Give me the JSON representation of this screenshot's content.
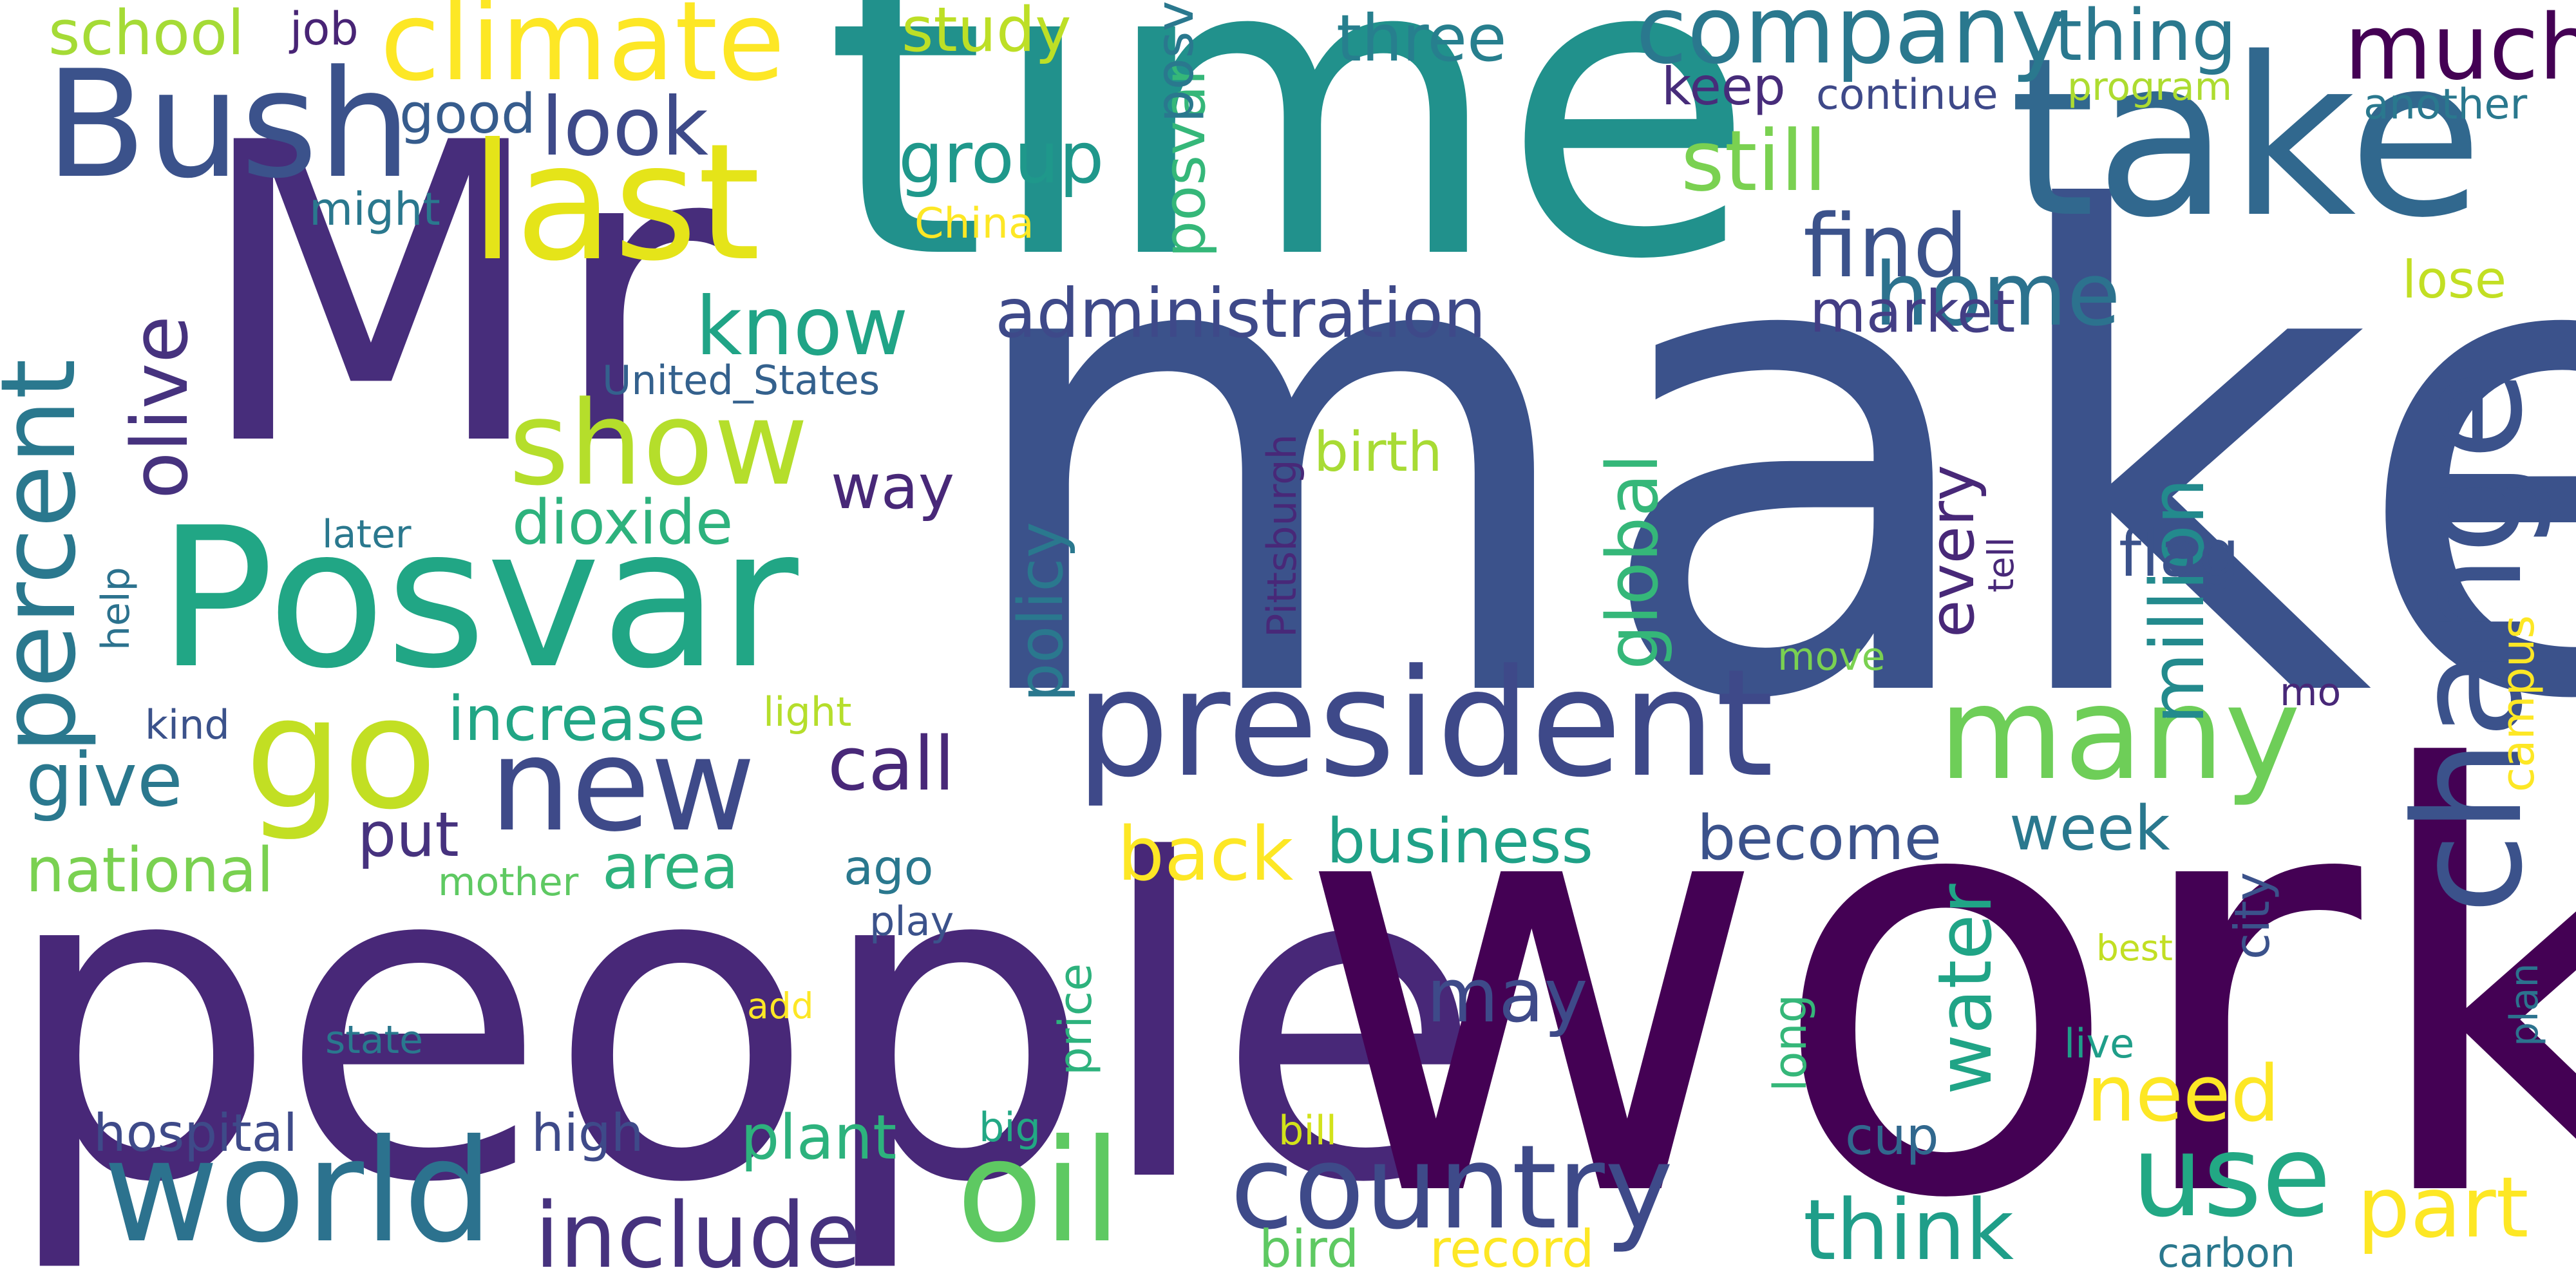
{
  "words": [
    {
      "text": "make",
      "color": "#3b528b"
    },
    {
      "text": "people",
      "color": "#482878"
    },
    {
      "text": "work",
      "color": "#440154"
    },
    {
      "text": "time",
      "color": "#21918c"
    },
    {
      "text": "Mr",
      "color": "#472d7b"
    },
    {
      "text": "Posvar",
      "color": "#21a685"
    },
    {
      "text": "take",
      "color": "#31688e"
    },
    {
      "text": "president",
      "color": "#3e4989"
    },
    {
      "text": "change",
      "color": "#3b528b"
    },
    {
      "text": "Bush",
      "color": "#3b528b"
    },
    {
      "text": "last",
      "color": "#e5e419"
    },
    {
      "text": "climate",
      "color": "#fde725"
    },
    {
      "text": "company",
      "color": "#2a788e"
    },
    {
      "text": "world",
      "color": "#2c728e"
    },
    {
      "text": "country",
      "color": "#3e4a89"
    },
    {
      "text": "new",
      "color": "#3e4a89"
    },
    {
      "text": "go",
      "color": "#c2df23"
    },
    {
      "text": "many",
      "color": "#6ece58"
    },
    {
      "text": "oil",
      "color": "#5ec962"
    },
    {
      "text": "use",
      "color": "#22a884"
    },
    {
      "text": "show",
      "color": "#b5de2b"
    },
    {
      "text": "percent",
      "color": "#2a788e"
    },
    {
      "text": "much",
      "color": "#440154"
    },
    {
      "text": "include",
      "color": "#46327e"
    },
    {
      "text": "think",
      "color": "#1f9e89"
    },
    {
      "text": "part",
      "color": "#fde725"
    },
    {
      "text": "need",
      "color": "#fde725"
    },
    {
      "text": "home",
      "color": "#2c728e"
    },
    {
      "text": "find",
      "color": "#3b528b"
    },
    {
      "text": "administration",
      "color": "#3e4989"
    },
    {
      "text": "know",
      "color": "#20a486"
    },
    {
      "text": "thing",
      "color": "#2a788e"
    },
    {
      "text": "three",
      "color": "#277f8e"
    },
    {
      "text": "study",
      "color": "#bddf26"
    },
    {
      "text": "school",
      "color": "#a5db36"
    },
    {
      "text": "job",
      "color": "#482475"
    },
    {
      "text": "look",
      "color": "#3e4a89"
    },
    {
      "text": "good",
      "color": "#365c8d"
    },
    {
      "text": "might",
      "color": "#2a788e"
    },
    {
      "text": "olive",
      "color": "#46327e"
    },
    {
      "text": "group",
      "color": "#1f988b"
    },
    {
      "text": "China",
      "color": "#fde725"
    },
    {
      "text": "posvar",
      "color": "#35b779"
    },
    {
      "text": "posvar",
      "color": "#2a788e"
    },
    {
      "text": "still",
      "color": "#7ad151"
    },
    {
      "text": "keep",
      "color": "#472c7a"
    },
    {
      "text": "continue",
      "color": "#3e4989"
    },
    {
      "text": "program",
      "color": "#addc30"
    },
    {
      "text": "another",
      "color": "#2a788e"
    },
    {
      "text": "lose",
      "color": "#c2df23"
    },
    {
      "text": "million",
      "color": "#238a8d"
    },
    {
      "text": "market",
      "color": "#433e85"
    },
    {
      "text": "United_States",
      "color": "#34618d"
    },
    {
      "text": "global",
      "color": "#35b779"
    },
    {
      "text": "birth",
      "color": "#a8db34"
    },
    {
      "text": "Pittsburgh",
      "color": "#482878"
    },
    {
      "text": "dioxide",
      "color": "#2db27d"
    },
    {
      "text": "way",
      "color": "#482878"
    },
    {
      "text": "later",
      "color": "#2a788e"
    },
    {
      "text": "policy",
      "color": "#2a788e"
    },
    {
      "text": "every",
      "color": "#482878"
    },
    {
      "text": "flag",
      "color": "#3b528b"
    },
    {
      "text": "tell",
      "color": "#482878"
    },
    {
      "text": "campus",
      "color": "#fde725"
    },
    {
      "text": "move",
      "color": "#7ad151"
    },
    {
      "text": "mo",
      "color": "#482878"
    },
    {
      "text": "help",
      "color": "#2c728e"
    },
    {
      "text": "kind",
      "color": "#3b528b"
    },
    {
      "text": "increase",
      "color": "#21a685"
    },
    {
      "text": "light",
      "color": "#b5de2b"
    },
    {
      "text": "give",
      "color": "#2a788e"
    },
    {
      "text": "call",
      "color": "#482878"
    },
    {
      "text": "put",
      "color": "#46327e"
    },
    {
      "text": "back",
      "color": "#fde725"
    },
    {
      "text": "business",
      "color": "#1fa187"
    },
    {
      "text": "become",
      "color": "#3b528b"
    },
    {
      "text": "week",
      "color": "#2a788e"
    },
    {
      "text": "national",
      "color": "#7ad151"
    },
    {
      "text": "mother",
      "color": "#5ec962"
    },
    {
      "text": "area",
      "color": "#2db27d"
    },
    {
      "text": "ago",
      "color": "#2a788e"
    },
    {
      "text": "water",
      "color": "#20a486"
    },
    {
      "text": "may",
      "color": "#3e4a89"
    },
    {
      "text": "city",
      "color": "#3b528b"
    },
    {
      "text": "play",
      "color": "#3b528b"
    },
    {
      "text": "price",
      "color": "#2db27d"
    },
    {
      "text": "best",
      "color": "#c2df23"
    },
    {
      "text": "add",
      "color": "#fde725"
    },
    {
      "text": "long",
      "color": "#35b779"
    },
    {
      "text": "state",
      "color": "#2a788e"
    },
    {
      "text": "live",
      "color": "#1f9e89"
    },
    {
      "text": "plan",
      "color": "#2c728e"
    },
    {
      "text": "hospital",
      "color": "#3e4a89"
    },
    {
      "text": "high",
      "color": "#3e4a89"
    },
    {
      "text": "plant",
      "color": "#2db27d"
    },
    {
      "text": "big",
      "color": "#22a884"
    },
    {
      "text": "bill",
      "color": "#d2e21b"
    },
    {
      "text": "cup",
      "color": "#31688e"
    },
    {
      "text": "bird",
      "color": "#5ec962"
    },
    {
      "text": "record",
      "color": "#fde725"
    },
    {
      "text": "carbon",
      "color": "#2a788e"
    }
  ]
}
